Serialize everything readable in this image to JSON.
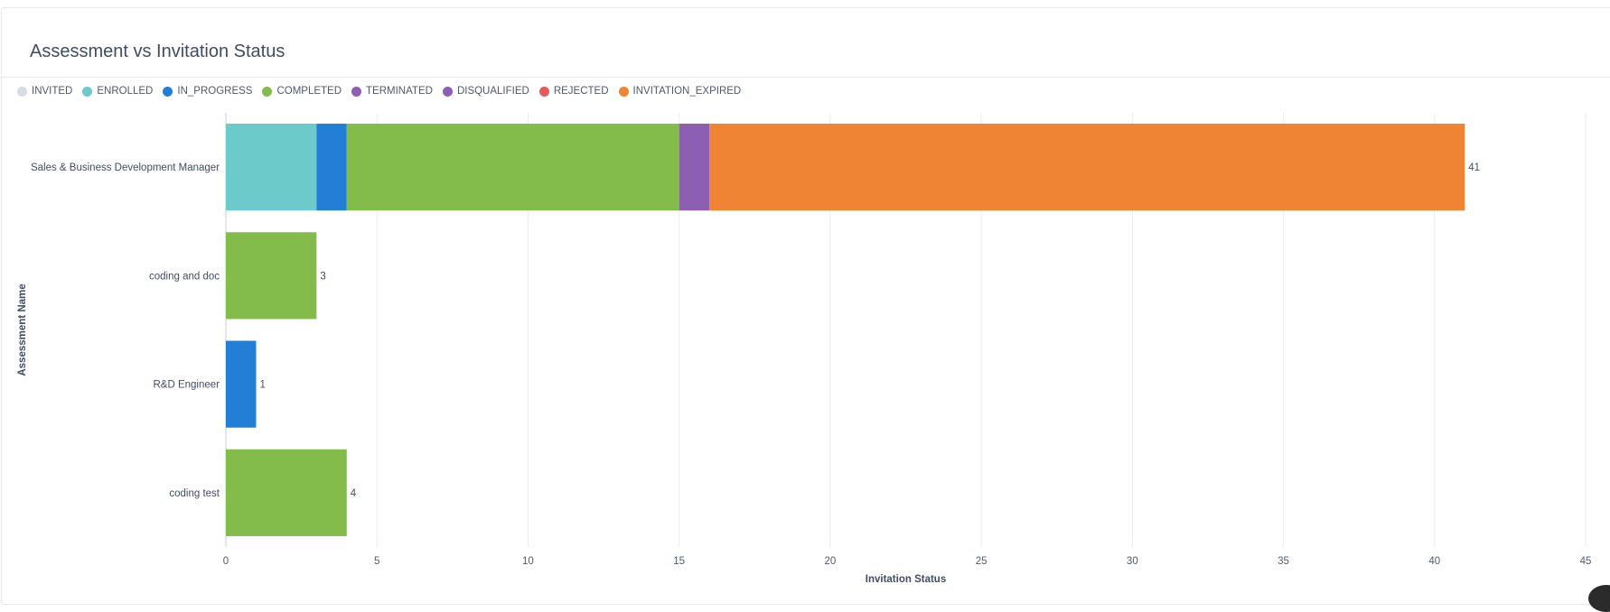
{
  "chart_data": {
    "type": "bar",
    "orientation": "horizontal",
    "stacked": true,
    "title": "Assessment vs Invitation Status",
    "xlabel": "Invitation Status",
    "ylabel": "Assessment Name",
    "xlim": [
      0,
      45
    ],
    "xticks": [
      0,
      5,
      10,
      15,
      20,
      25,
      30,
      35,
      40,
      45
    ],
    "grid": "vertical",
    "legend_position": "top-left",
    "categories": [
      "Sales & Business Development Manager",
      "coding and doc",
      "R&D Engineer",
      "coding test"
    ],
    "series": [
      {
        "name": "INVITED",
        "color": "#d9dde3",
        "values": [
          0,
          0,
          0,
          0
        ]
      },
      {
        "name": "ENROLLED",
        "color": "#6ccacb",
        "values": [
          3,
          0,
          0,
          0
        ]
      },
      {
        "name": "IN_PROGRESS",
        "color": "#237ed6",
        "values": [
          1,
          0,
          1,
          0
        ]
      },
      {
        "name": "COMPLETED",
        "color": "#84bc4c",
        "values": [
          11,
          3,
          0,
          4
        ]
      },
      {
        "name": "TERMINATED",
        "color": "#8c5fb3",
        "values": [
          0,
          0,
          0,
          0
        ]
      },
      {
        "name": "DISQUALIFIED",
        "color": "#8c5fb3",
        "values": [
          1,
          0,
          0,
          0
        ]
      },
      {
        "name": "REJECTED",
        "color": "#e05a5e",
        "values": [
          0,
          0,
          0,
          0
        ]
      },
      {
        "name": "INVITATION_EXPIRED",
        "color": "#ef8435",
        "values": [
          25,
          0,
          0,
          0
        ]
      }
    ],
    "totals": [
      41,
      3,
      1,
      4
    ]
  }
}
